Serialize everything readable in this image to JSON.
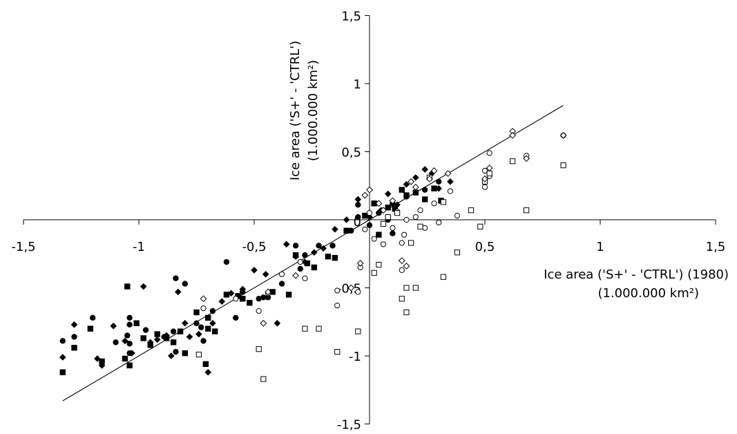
{
  "chart_data": {
    "type": "scatter",
    "xlabel": [
      "Ice area ('S+' - 'CTRL') (1980)",
      "(1.000.000 km²)"
    ],
    "ylabel": [
      "Ice area ('S+' - 'CTRL')",
      "(1.000.000 km²)"
    ],
    "xlim": [
      -1.5,
      1.5
    ],
    "ylim": [
      -1.5,
      1.5
    ],
    "xticks": [
      "-1,5",
      "-1",
      "-0,5",
      "0",
      "0,5",
      "1",
      "1,5"
    ],
    "yticks": [
      "1,5",
      "1",
      "0,5",
      "0",
      "-0,5",
      "-1",
      "-1,5"
    ],
    "grid": false,
    "legend": "none",
    "trendline": {
      "x": [
        -1.33,
        0.84
      ],
      "y": [
        -1.33,
        0.84
      ]
    },
    "series": [
      {
        "marker": "filled-circle",
        "points": [
          [
            -1.33,
            -0.89
          ],
          [
            -1.28,
            -0.86
          ],
          [
            -1.2,
            -0.72
          ],
          [
            -1.1,
            -0.9
          ],
          [
            -1.05,
            -0.85
          ],
          [
            -1.04,
            -0.91
          ],
          [
            -1.04,
            -0.98
          ],
          [
            -1.04,
            -0.77
          ],
          [
            -1.04,
            -0.72
          ],
          [
            -0.97,
            -0.81
          ],
          [
            -0.95,
            -0.91
          ],
          [
            -0.89,
            -0.86
          ],
          [
            -0.85,
            -0.82
          ],
          [
            -0.84,
            -0.43
          ],
          [
            -0.84,
            -0.97
          ],
          [
            -0.8,
            -0.47
          ],
          [
            -0.75,
            -0.76
          ],
          [
            -0.73,
            -0.79
          ],
          [
            -0.72,
            -0.89
          ],
          [
            -0.68,
            -0.67
          ],
          [
            -0.62,
            -0.31
          ],
          [
            -0.58,
            -0.72
          ],
          [
            -0.55,
            -0.53
          ],
          [
            -0.48,
            -0.58
          ],
          [
            -0.46,
            -0.57
          ],
          [
            -0.44,
            -0.57
          ],
          [
            -0.38,
            -0.47
          ],
          [
            -0.32,
            -0.19
          ],
          [
            -0.3,
            -0.36
          ],
          [
            -0.28,
            -0.26
          ],
          [
            -0.22,
            -0.19
          ],
          [
            -0.16,
            -0.19
          ],
          [
            -0.08,
            -0.08
          ],
          [
            -0.05,
            0.02
          ],
          [
            -0.05,
            0.11
          ],
          [
            0.0,
            -0.04
          ],
          [
            0.04,
            0.05
          ],
          [
            0.08,
            0.0
          ],
          [
            0.1,
            0.12
          ],
          [
            0.1,
            -0.1
          ],
          [
            0.16,
            0.17
          ],
          [
            0.2,
            0.2
          ],
          [
            0.24,
            0.22
          ],
          [
            0.3,
            0.28
          ]
        ]
      },
      {
        "marker": "filled-square",
        "points": [
          [
            -1.33,
            -1.12
          ],
          [
            -1.28,
            -0.94
          ],
          [
            -1.21,
            -0.8
          ],
          [
            -1.16,
            -1.04
          ],
          [
            -1.06,
            -1.02
          ],
          [
            -1.05,
            -0.49
          ],
          [
            -1.04,
            -1.07
          ],
          [
            -1.01,
            -0.76
          ],
          [
            -0.98,
            -0.87
          ],
          [
            -0.95,
            -0.92
          ],
          [
            -0.92,
            -0.84
          ],
          [
            -0.88,
            -0.87
          ],
          [
            -0.85,
            -0.9
          ],
          [
            -0.82,
            -0.82
          ],
          [
            -0.8,
            -0.98
          ],
          [
            -0.75,
            -0.68
          ],
          [
            -0.71,
            -1.06
          ],
          [
            -0.7,
            -0.8
          ],
          [
            -0.7,
            -0.72
          ],
          [
            -0.67,
            -0.82
          ],
          [
            -0.62,
            -0.55
          ],
          [
            -0.57,
            -0.56
          ],
          [
            -0.55,
            -0.58
          ],
          [
            -0.52,
            -0.61
          ],
          [
            -0.42,
            -0.53
          ],
          [
            -0.35,
            -0.55
          ],
          [
            -0.32,
            -0.26
          ],
          [
            -0.27,
            -0.32
          ],
          [
            -0.24,
            -0.35
          ],
          [
            -0.18,
            -0.27
          ],
          [
            -0.15,
            -0.28
          ],
          [
            -0.1,
            -0.08
          ],
          [
            -0.02,
            0.03
          ],
          [
            0.02,
            0.12
          ],
          [
            0.04,
            -0.11
          ],
          [
            0.08,
            0.09
          ],
          [
            0.11,
            0.08
          ],
          [
            0.14,
            0.22
          ],
          [
            0.16,
            0.18
          ],
          [
            0.2,
            0.2
          ],
          [
            0.24,
            0.15
          ],
          [
            0.28,
            0.23
          ],
          [
            0.31,
            0.14
          ]
        ]
      },
      {
        "marker": "filled-diamond",
        "points": [
          [
            -1.33,
            -1.01
          ],
          [
            -1.28,
            -0.77
          ],
          [
            -1.18,
            -1.02
          ],
          [
            -1.16,
            -1.07
          ],
          [
            -1.11,
            -0.78
          ],
          [
            -1.06,
            -0.89
          ],
          [
            -1.03,
            -0.98
          ],
          [
            -0.98,
            -0.49
          ],
          [
            -0.95,
            -0.9
          ],
          [
            -0.92,
            -0.88
          ],
          [
            -0.88,
            -0.85
          ],
          [
            -0.86,
            -1.0
          ],
          [
            -0.83,
            -0.53
          ],
          [
            -0.8,
            -0.76
          ],
          [
            -0.78,
            -0.86
          ],
          [
            -0.74,
            -0.84
          ],
          [
            -0.7,
            -1.12
          ],
          [
            -0.68,
            -0.76
          ],
          [
            -0.64,
            -0.6
          ],
          [
            -0.6,
            -0.54
          ],
          [
            -0.55,
            -0.51
          ],
          [
            -0.5,
            -0.37
          ],
          [
            -0.45,
            -0.4
          ],
          [
            -0.4,
            -0.76
          ],
          [
            -0.36,
            -0.18
          ],
          [
            -0.32,
            -0.27
          ],
          [
            -0.28,
            -0.31
          ],
          [
            -0.24,
            -0.24
          ],
          [
            -0.2,
            -0.21
          ],
          [
            -0.15,
            -0.07
          ],
          [
            -0.1,
            0.0
          ],
          [
            -0.05,
            0.15
          ],
          [
            0.0,
            0.02
          ],
          [
            0.05,
            0.07
          ],
          [
            0.08,
            0.19
          ],
          [
            0.12,
            0.11
          ],
          [
            0.16,
            0.26
          ],
          [
            0.2,
            0.31
          ],
          [
            0.24,
            0.37
          ],
          [
            0.27,
            0.34
          ],
          [
            0.3,
            0.23
          ],
          [
            0.35,
            0.28
          ]
        ]
      },
      {
        "marker": "open-circle",
        "points": [
          [
            -0.72,
            -0.65
          ],
          [
            -0.58,
            -0.58
          ],
          [
            -0.48,
            -0.67
          ],
          [
            -0.44,
            -0.54
          ],
          [
            -0.38,
            -0.4
          ],
          [
            -0.3,
            -0.31
          ],
          [
            -0.28,
            -0.43
          ],
          [
            -0.14,
            -0.52
          ],
          [
            -0.14,
            -0.63
          ],
          [
            -0.05,
            -0.53
          ],
          [
            -0.04,
            -0.35
          ],
          [
            -0.02,
            -0.07
          ],
          [
            0.0,
            0.05
          ],
          [
            0.02,
            -0.14
          ],
          [
            0.06,
            -0.18
          ],
          [
            0.1,
            -0.06
          ],
          [
            0.12,
            0.06
          ],
          [
            0.14,
            -0.17
          ],
          [
            0.14,
            -0.37
          ],
          [
            0.15,
            -0.11
          ],
          [
            0.16,
            0.0
          ],
          [
            0.2,
            0.02
          ],
          [
            0.22,
            0.07
          ],
          [
            0.24,
            -0.06
          ],
          [
            0.28,
            0.12
          ],
          [
            0.3,
            -0.02
          ],
          [
            0.35,
            0.21
          ],
          [
            0.38,
            0.03
          ],
          [
            0.5,
            0.24
          ],
          [
            0.5,
            0.36
          ],
          [
            0.52,
            0.32
          ],
          [
            0.52,
            0.49
          ],
          [
            0.68,
            0.47
          ],
          [
            0.84,
            0.62
          ]
        ]
      },
      {
        "marker": "open-square",
        "points": [
          [
            -0.74,
            -0.99
          ],
          [
            -0.48,
            -0.95
          ],
          [
            -0.46,
            -1.17
          ],
          [
            -0.28,
            -0.8
          ],
          [
            -0.22,
            -0.8
          ],
          [
            -0.14,
            -0.97
          ],
          [
            -0.05,
            -0.82
          ],
          [
            0.02,
            -0.39
          ],
          [
            0.04,
            -0.33
          ],
          [
            0.06,
            -0.03
          ],
          [
            0.08,
            0.02
          ],
          [
            0.12,
            0.05
          ],
          [
            0.14,
            -0.58
          ],
          [
            0.16,
            -0.5
          ],
          [
            0.16,
            -0.68
          ],
          [
            0.18,
            -0.17
          ],
          [
            0.2,
            -0.5
          ],
          [
            0.22,
            -0.05
          ],
          [
            0.26,
            0.31
          ],
          [
            0.32,
            -0.42
          ],
          [
            0.32,
            0.13
          ],
          [
            0.38,
            -0.24
          ],
          [
            0.44,
            0.07
          ],
          [
            0.48,
            -0.05
          ],
          [
            0.5,
            0.28
          ],
          [
            0.52,
            0.34
          ],
          [
            0.62,
            0.43
          ],
          [
            0.68,
            0.07
          ],
          [
            0.84,
            0.4
          ]
        ]
      },
      {
        "marker": "open-diamond",
        "points": [
          [
            -0.72,
            -0.58
          ],
          [
            -0.46,
            -0.76
          ],
          [
            -0.44,
            -0.53
          ],
          [
            -0.32,
            -0.41
          ],
          [
            -0.08,
            -0.5
          ],
          [
            -0.04,
            -0.32
          ],
          [
            -0.02,
            0.18
          ],
          [
            0.0,
            0.22
          ],
          [
            0.04,
            0.12
          ],
          [
            0.06,
            0.07
          ],
          [
            0.1,
            0.14
          ],
          [
            0.14,
            -0.3
          ],
          [
            0.16,
            -0.34
          ],
          [
            0.18,
            0.28
          ],
          [
            0.2,
            0.24
          ],
          [
            0.26,
            0.3
          ],
          [
            0.28,
            0.36
          ],
          [
            0.34,
            0.34
          ],
          [
            0.5,
            0.3
          ],
          [
            0.52,
            0.38
          ],
          [
            0.62,
            0.65
          ],
          [
            0.62,
            0.62
          ],
          [
            0.68,
            0.45
          ],
          [
            0.84,
            0.62
          ]
        ]
      }
    ]
  }
}
